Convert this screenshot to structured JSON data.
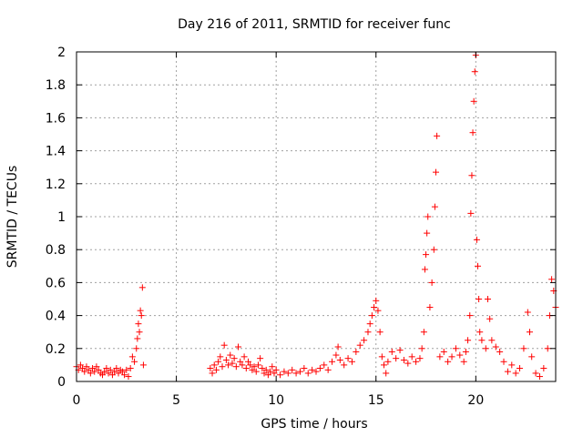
{
  "chart_data": {
    "type": "scatter",
    "title": "Day 216 of 2011, SRMTID for receiver func",
    "xlabel": "GPS time / hours",
    "ylabel": "SRMTID / TECUs",
    "xlim": [
      0,
      24
    ],
    "ylim": [
      0,
      2
    ],
    "xticks": [
      0,
      5,
      10,
      15,
      20
    ],
    "xtick_labels": [
      "0",
      "5",
      "10",
      "15",
      "20"
    ],
    "yticks": [
      0,
      0.2,
      0.4,
      0.6,
      0.8,
      1,
      1.2,
      1.4,
      1.6,
      1.8,
      2
    ],
    "ytick_labels": [
      "0",
      "0.2",
      "0.4",
      "0.6",
      "0.8",
      "1",
      "1.2",
      "1.4",
      "1.6",
      "1.8",
      "2"
    ],
    "grid": true,
    "marker": "+",
    "color": "#ff0000",
    "series": [
      {
        "name": "SRMTID",
        "points": [
          [
            0.0,
            0.09
          ],
          [
            0.1,
            0.07
          ],
          [
            0.2,
            0.1
          ],
          [
            0.3,
            0.08
          ],
          [
            0.4,
            0.06
          ],
          [
            0.5,
            0.09
          ],
          [
            0.6,
            0.07
          ],
          [
            0.7,
            0.05
          ],
          [
            0.8,
            0.08
          ],
          [
            0.9,
            0.06
          ],
          [
            1.0,
            0.09
          ],
          [
            1.1,
            0.07
          ],
          [
            1.2,
            0.05
          ],
          [
            1.3,
            0.04
          ],
          [
            1.4,
            0.06
          ],
          [
            1.5,
            0.08
          ],
          [
            1.6,
            0.05
          ],
          [
            1.7,
            0.07
          ],
          [
            1.8,
            0.04
          ],
          [
            1.9,
            0.06
          ],
          [
            2.0,
            0.08
          ],
          [
            2.1,
            0.05
          ],
          [
            2.2,
            0.07
          ],
          [
            2.3,
            0.06
          ],
          [
            2.4,
            0.04
          ],
          [
            2.5,
            0.07
          ],
          [
            2.6,
            0.03
          ],
          [
            2.7,
            0.08
          ],
          [
            2.8,
            0.15
          ],
          [
            2.9,
            0.12
          ],
          [
            3.0,
            0.2
          ],
          [
            3.05,
            0.26
          ],
          [
            3.1,
            0.35
          ],
          [
            3.15,
            0.3
          ],
          [
            3.2,
            0.43
          ],
          [
            3.25,
            0.4
          ],
          [
            3.3,
            0.57
          ],
          [
            3.35,
            0.1
          ],
          [
            6.7,
            0.08
          ],
          [
            6.8,
            0.05
          ],
          [
            6.9,
            0.1
          ],
          [
            7.0,
            0.07
          ],
          [
            7.1,
            0.12
          ],
          [
            7.2,
            0.15
          ],
          [
            7.3,
            0.09
          ],
          [
            7.4,
            0.22
          ],
          [
            7.5,
            0.13
          ],
          [
            7.6,
            0.1
          ],
          [
            7.7,
            0.16
          ],
          [
            7.8,
            0.11
          ],
          [
            7.9,
            0.14
          ],
          [
            8.0,
            0.09
          ],
          [
            8.1,
            0.21
          ],
          [
            8.2,
            0.12
          ],
          [
            8.3,
            0.1
          ],
          [
            8.4,
            0.15
          ],
          [
            8.5,
            0.08
          ],
          [
            8.6,
            0.12
          ],
          [
            8.7,
            0.1
          ],
          [
            8.8,
            0.07
          ],
          [
            8.9,
            0.09
          ],
          [
            9.0,
            0.06
          ],
          [
            9.1,
            0.1
          ],
          [
            9.2,
            0.14
          ],
          [
            9.3,
            0.08
          ],
          [
            9.4,
            0.05
          ],
          [
            9.5,
            0.07
          ],
          [
            9.6,
            0.04
          ],
          [
            9.7,
            0.06
          ],
          [
            9.8,
            0.09
          ],
          [
            9.9,
            0.05
          ],
          [
            10.0,
            0.07
          ],
          [
            10.2,
            0.04
          ],
          [
            10.4,
            0.06
          ],
          [
            10.6,
            0.05
          ],
          [
            10.8,
            0.07
          ],
          [
            11.0,
            0.05
          ],
          [
            11.2,
            0.06
          ],
          [
            11.4,
            0.08
          ],
          [
            11.6,
            0.05
          ],
          [
            11.8,
            0.07
          ],
          [
            12.0,
            0.06
          ],
          [
            12.2,
            0.08
          ],
          [
            12.4,
            0.1
          ],
          [
            12.6,
            0.07
          ],
          [
            12.8,
            0.12
          ],
          [
            13.0,
            0.16
          ],
          [
            13.1,
            0.21
          ],
          [
            13.2,
            0.13
          ],
          [
            13.4,
            0.1
          ],
          [
            13.6,
            0.14
          ],
          [
            13.8,
            0.12
          ],
          [
            14.0,
            0.18
          ],
          [
            14.2,
            0.22
          ],
          [
            14.4,
            0.25
          ],
          [
            14.6,
            0.3
          ],
          [
            14.7,
            0.35
          ],
          [
            14.8,
            0.4
          ],
          [
            14.9,
            0.45
          ],
          [
            15.0,
            0.49
          ],
          [
            15.1,
            0.43
          ],
          [
            15.2,
            0.3
          ],
          [
            15.3,
            0.15
          ],
          [
            15.4,
            0.1
          ],
          [
            15.5,
            0.05
          ],
          [
            15.6,
            0.12
          ],
          [
            15.8,
            0.18
          ],
          [
            16.0,
            0.14
          ],
          [
            16.2,
            0.19
          ],
          [
            16.4,
            0.13
          ],
          [
            16.6,
            0.11
          ],
          [
            16.8,
            0.15
          ],
          [
            17.0,
            0.12
          ],
          [
            17.2,
            0.14
          ],
          [
            17.3,
            0.2
          ],
          [
            17.4,
            0.3
          ],
          [
            17.45,
            0.68
          ],
          [
            17.5,
            0.77
          ],
          [
            17.55,
            0.9
          ],
          [
            17.6,
            1.0
          ],
          [
            17.7,
            0.45
          ],
          [
            17.8,
            0.6
          ],
          [
            17.9,
            0.8
          ],
          [
            17.95,
            1.06
          ],
          [
            18.0,
            1.27
          ],
          [
            18.05,
            1.49
          ],
          [
            18.2,
            0.15
          ],
          [
            18.4,
            0.18
          ],
          [
            18.6,
            0.12
          ],
          [
            18.8,
            0.15
          ],
          [
            19.0,
            0.2
          ],
          [
            19.2,
            0.16
          ],
          [
            19.4,
            0.12
          ],
          [
            19.5,
            0.18
          ],
          [
            19.6,
            0.25
          ],
          [
            19.7,
            0.4
          ],
          [
            19.75,
            1.02
          ],
          [
            19.8,
            1.25
          ],
          [
            19.85,
            1.51
          ],
          [
            19.9,
            1.7
          ],
          [
            19.95,
            1.88
          ],
          [
            20.0,
            1.98
          ],
          [
            20.05,
            0.86
          ],
          [
            20.1,
            0.7
          ],
          [
            20.15,
            0.5
          ],
          [
            20.2,
            0.3
          ],
          [
            20.3,
            0.25
          ],
          [
            20.5,
            0.2
          ],
          [
            20.6,
            0.5
          ],
          [
            20.7,
            0.38
          ],
          [
            20.8,
            0.25
          ],
          [
            21.0,
            0.21
          ],
          [
            21.2,
            0.18
          ],
          [
            21.4,
            0.12
          ],
          [
            21.6,
            0.06
          ],
          [
            21.8,
            0.1
          ],
          [
            22.0,
            0.05
          ],
          [
            22.2,
            0.08
          ],
          [
            22.4,
            0.2
          ],
          [
            22.6,
            0.42
          ],
          [
            22.7,
            0.3
          ],
          [
            22.8,
            0.15
          ],
          [
            23.0,
            0.05
          ],
          [
            23.2,
            0.03
          ],
          [
            23.4,
            0.08
          ],
          [
            23.6,
            0.2
          ],
          [
            23.7,
            0.4
          ],
          [
            23.8,
            0.62
          ],
          [
            23.9,
            0.55
          ],
          [
            24.0,
            0.45
          ]
        ]
      }
    ]
  }
}
